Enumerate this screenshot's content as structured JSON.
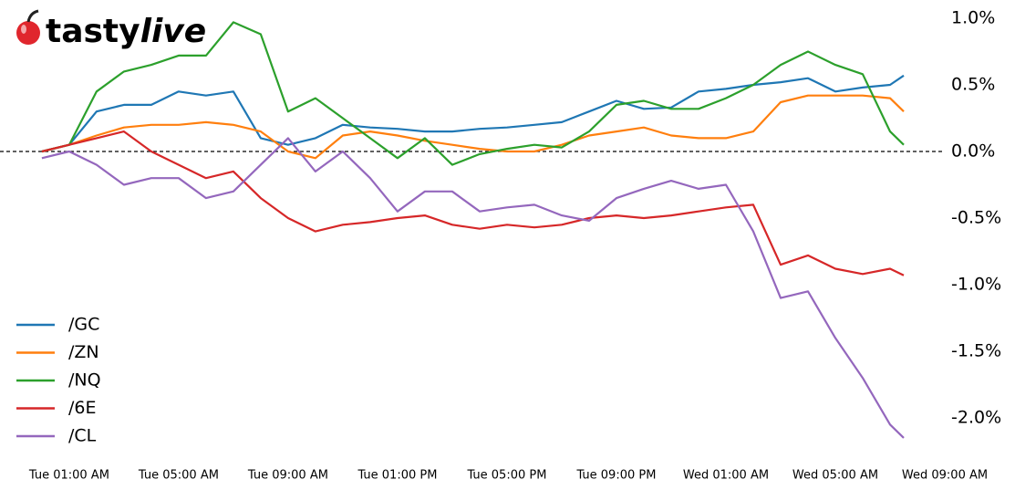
{
  "logo": {
    "text": "tasty",
    "emphasis": "live"
  },
  "chart_data": {
    "type": "line",
    "x": [
      0,
      1,
      2,
      3,
      4,
      5,
      6,
      7,
      8,
      9,
      10,
      11,
      12,
      13,
      14,
      15,
      16,
      17,
      18,
      19,
      20,
      21,
      22,
      23,
      24,
      25,
      26,
      27,
      28,
      29,
      30,
      31,
      31.5
    ],
    "xlim": [
      -1.53,
      33
    ],
    "xticks": [
      {
        "value": 1,
        "label": "Tue 01:00 AM"
      },
      {
        "value": 5,
        "label": "Tue 05:00 AM"
      },
      {
        "value": 9,
        "label": "Tue 09:00 AM"
      },
      {
        "value": 13,
        "label": "Tue 01:00 PM"
      },
      {
        "value": 17,
        "label": "Tue 05:00 PM"
      },
      {
        "value": 21,
        "label": "Tue 09:00 PM"
      },
      {
        "value": 25,
        "label": "Wed 01:00 AM"
      },
      {
        "value": 29,
        "label": "Wed 05:00 AM"
      },
      {
        "value": 33,
        "label": "Wed 09:00 AM"
      }
    ],
    "ylim": [
      -2.3,
      1.1
    ],
    "yticks": [
      {
        "value": 1.0,
        "label": "1.0%"
      },
      {
        "value": 0.5,
        "label": "0.5%"
      },
      {
        "value": 0.0,
        "label": "0.0%"
      },
      {
        "value": -0.5,
        "label": "-0.5%"
      },
      {
        "value": -1.0,
        "label": "-1.0%"
      },
      {
        "value": -1.5,
        "label": "-1.5%"
      },
      {
        "value": -2.0,
        "label": "-2.0%"
      }
    ],
    "reference_line": 0,
    "legend": "lower left",
    "series": [
      {
        "name": "/GC",
        "color": "#1f77b4",
        "values": [
          0,
          0.05,
          0.3,
          0.35,
          0.35,
          0.45,
          0.42,
          0.45,
          0.1,
          0.05,
          0.1,
          0.2,
          0.18,
          0.17,
          0.15,
          0.15,
          0.17,
          0.18,
          0.2,
          0.22,
          0.3,
          0.38,
          0.32,
          0.33,
          0.45,
          0.47,
          0.5,
          0.52,
          0.55,
          0.45,
          0.48,
          0.5,
          0.57
        ]
      },
      {
        "name": "/ZN",
        "color": "#ff7f0e",
        "values": [
          0,
          0.05,
          0.12,
          0.18,
          0.2,
          0.2,
          0.22,
          0.2,
          0.15,
          0.0,
          -0.05,
          0.12,
          0.15,
          0.12,
          0.08,
          0.05,
          0.02,
          0.0,
          0.0,
          0.05,
          0.12,
          0.15,
          0.18,
          0.12,
          0.1,
          0.1,
          0.15,
          0.37,
          0.42,
          0.42,
          0.42,
          0.4,
          0.3
        ]
      },
      {
        "name": "/NQ",
        "color": "#2ca02c",
        "values": [
          0,
          0.05,
          0.45,
          0.6,
          0.65,
          0.72,
          0.72,
          0.97,
          0.88,
          0.3,
          0.4,
          0.25,
          0.1,
          -0.05,
          0.1,
          -0.1,
          -0.02,
          0.02,
          0.05,
          0.03,
          0.15,
          0.35,
          0.38,
          0.32,
          0.32,
          0.4,
          0.5,
          0.65,
          0.75,
          0.65,
          0.58,
          0.15,
          0.05
        ]
      },
      {
        "name": "/6E",
        "color": "#d62728",
        "values": [
          0,
          0.05,
          0.1,
          0.15,
          0.0,
          -0.1,
          -0.2,
          -0.15,
          -0.35,
          -0.5,
          -0.6,
          -0.55,
          -0.53,
          -0.5,
          -0.48,
          -0.55,
          -0.58,
          -0.55,
          -0.57,
          -0.55,
          -0.5,
          -0.48,
          -0.5,
          -0.48,
          -0.45,
          -0.42,
          -0.4,
          -0.85,
          -0.78,
          -0.88,
          -0.92,
          -0.88,
          -0.93
        ]
      },
      {
        "name": "/CL",
        "color": "#9467bd",
        "values": [
          -0.05,
          0.0,
          -0.1,
          -0.25,
          -0.2,
          -0.2,
          -0.35,
          -0.3,
          -0.1,
          0.1,
          -0.15,
          0.0,
          -0.2,
          -0.45,
          -0.3,
          -0.3,
          -0.45,
          -0.42,
          -0.4,
          -0.48,
          -0.52,
          -0.35,
          -0.28,
          -0.22,
          -0.28,
          -0.25,
          -0.6,
          -1.1,
          -1.05,
          -1.4,
          -1.7,
          -2.05,
          -2.15
        ]
      }
    ]
  }
}
